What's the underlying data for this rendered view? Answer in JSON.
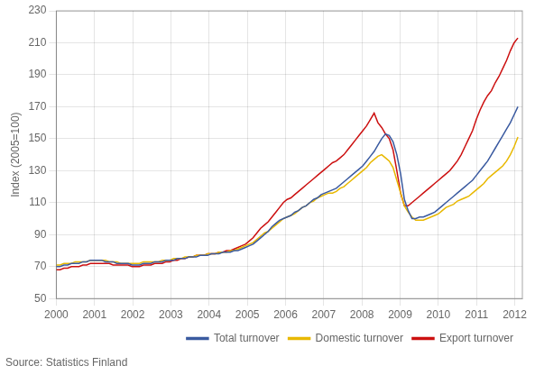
{
  "chart_data": {
    "type": "line",
    "y_label": "Index (2005=100)",
    "annotation": "Source: Statistics Finland",
    "x": [
      2000,
      2000.099,
      2000.1981,
      2000.2971,
      2000.3962,
      2000.4952,
      2000.5943,
      2000.6933,
      2000.7923,
      2000.8914,
      2000.9904,
      2001.0895,
      2001.1885,
      2001.2876,
      2001.3866,
      2001.4857,
      2001.5847,
      2001.6837,
      2001.7828,
      2001.8818,
      2001.9809,
      2002.0799,
      2002.179,
      2002.278,
      2002.377,
      2002.4761,
      2002.5751,
      2002.6742,
      2002.7732,
      2002.8723,
      2002.9713,
      2003.0704,
      2003.1694,
      2003.2684,
      2003.3675,
      2003.4665,
      2003.5656,
      2003.6646,
      2003.7637,
      2003.8627,
      2003.9617,
      2004.0608,
      2004.1598,
      2004.2589,
      2004.3579,
      2004.457,
      2004.556,
      2004.6551,
      2004.7541,
      2004.8531,
      2004.9522,
      2005.0512,
      2005.1503,
      2005.2493,
      2005.3484,
      2005.4474,
      2005.5464,
      2005.6455,
      2005.7445,
      2005.8436,
      2005.9426,
      2006.0417,
      2006.1407,
      2006.2398,
      2006.3388,
      2006.4378,
      2006.5369,
      2006.6359,
      2006.735,
      2006.834,
      2006.9331,
      2007.0321,
      2007.1311,
      2007.2302,
      2007.3292,
      2007.4283,
      2007.5273,
      2007.6264,
      2007.7254,
      2007.8245,
      2007.9235,
      2008.0225,
      2008.1216,
      2008.2206,
      2008.3197,
      2008.4187,
      2008.5178,
      2008.6168,
      2008.7158,
      2008.8149,
      2008.9139,
      2009.013,
      2009.112,
      2009.2111,
      2009.3101,
      2009.4092,
      2009.5082,
      2009.6072,
      2009.7063,
      2009.8053,
      2009.9044,
      2010.0034,
      2010.1025,
      2010.2015,
      2010.3005,
      2010.3996,
      2010.4986,
      2010.5977,
      2010.6967,
      2010.7958,
      2010.8948,
      2010.9939,
      2011.0929,
      2011.1919,
      2011.291,
      2011.39,
      2011.4891,
      2011.5881,
      2011.6872,
      2011.7862,
      2011.8852,
      2011.9843,
      2012.0833
    ],
    "series": [
      {
        "name": "Total turnover",
        "color": "#3a5aa0",
        "values": [
          70,
          70,
          71,
          71,
          72,
          72,
          72,
          73,
          73,
          74,
          74,
          74,
          74,
          73,
          73,
          73,
          72,
          72,
          72,
          72,
          71,
          71,
          71,
          72,
          72,
          72,
          73,
          73,
          73,
          74,
          74,
          74,
          75,
          75,
          75,
          76,
          76,
          76,
          77,
          77,
          77,
          78,
          78,
          78,
          79,
          79,
          79,
          80,
          80,
          81,
          82,
          83,
          84,
          86,
          88,
          90,
          92,
          95,
          97,
          99,
          100,
          101,
          102,
          104,
          105,
          107,
          108,
          110,
          112,
          113,
          115,
          116,
          117,
          118,
          119,
          121,
          123,
          125,
          127,
          129,
          131,
          133,
          136,
          139,
          142,
          146,
          150,
          153,
          152,
          148,
          140,
          128,
          112,
          105,
          100,
          100,
          101,
          101,
          102,
          103,
          104,
          106,
          108,
          110,
          112,
          114,
          116,
          118,
          120,
          122,
          124,
          127,
          130,
          133,
          136,
          140,
          144,
          148,
          152,
          156,
          160,
          165,
          170
        ]
      },
      {
        "name": "Domestic turnover",
        "color": "#e8b800",
        "values": [
          71,
          71,
          72,
          72,
          72,
          73,
          73,
          73,
          73,
          74,
          74,
          74,
          74,
          74,
          73,
          73,
          73,
          72,
          72,
          72,
          72,
          72,
          72,
          73,
          73,
          73,
          73,
          73,
          74,
          74,
          74,
          75,
          75,
          75,
          76,
          76,
          76,
          77,
          77,
          77,
          78,
          78,
          78,
          79,
          79,
          79,
          80,
          80,
          81,
          82,
          83,
          84,
          85,
          87,
          89,
          91,
          92,
          94,
          96,
          98,
          100,
          101,
          102,
          103,
          105,
          107,
          108,
          110,
          111,
          113,
          114,
          115,
          116,
          116,
          117,
          119,
          120,
          122,
          124,
          126,
          128,
          130,
          132,
          135,
          137,
          139,
          140,
          138,
          136,
          132,
          124,
          116,
          108,
          104,
          101,
          99,
          99,
          99,
          100,
          101,
          102,
          103,
          105,
          107,
          108,
          109,
          111,
          112,
          113,
          114,
          116,
          118,
          120,
          122,
          125,
          127,
          129,
          131,
          133,
          136,
          140,
          145,
          151
        ]
      },
      {
        "name": "Export turnover",
        "color": "#cc1010",
        "values": [
          68,
          68,
          69,
          69,
          70,
          70,
          70,
          71,
          71,
          72,
          72,
          72,
          72,
          72,
          72,
          71,
          71,
          71,
          71,
          71,
          70,
          70,
          70,
          71,
          71,
          71,
          72,
          72,
          72,
          73,
          73,
          74,
          74,
          75,
          75,
          76,
          76,
          77,
          77,
          77,
          78,
          78,
          78,
          79,
          79,
          80,
          80,
          81,
          82,
          83,
          84,
          86,
          88,
          91,
          94,
          96,
          98,
          101,
          104,
          107,
          110,
          112,
          113,
          115,
          117,
          119,
          121,
          123,
          125,
          127,
          129,
          131,
          133,
          135,
          136,
          138,
          140,
          143,
          146,
          149,
          152,
          155,
          158,
          162,
          166,
          160,
          157,
          153,
          150,
          143,
          130,
          116,
          108,
          108,
          110,
          112,
          114,
          116,
          118,
          120,
          122,
          124,
          126,
          128,
          130,
          133,
          136,
          140,
          145,
          150,
          155,
          162,
          168,
          173,
          177,
          180,
          185,
          189,
          194,
          199,
          205,
          210,
          213
        ]
      }
    ],
    "xlim": [
      2000,
      2012.2
    ],
    "xticks": [
      2000,
      2001,
      2002,
      2003,
      2004,
      2005,
      2006,
      2007,
      2008,
      2009,
      2010,
      2011,
      2012
    ],
    "ylim": [
      50,
      230
    ],
    "yticks": [
      50,
      70,
      90,
      110,
      130,
      150,
      170,
      190,
      210,
      230
    ],
    "grid": true,
    "legend": "lower right"
  }
}
